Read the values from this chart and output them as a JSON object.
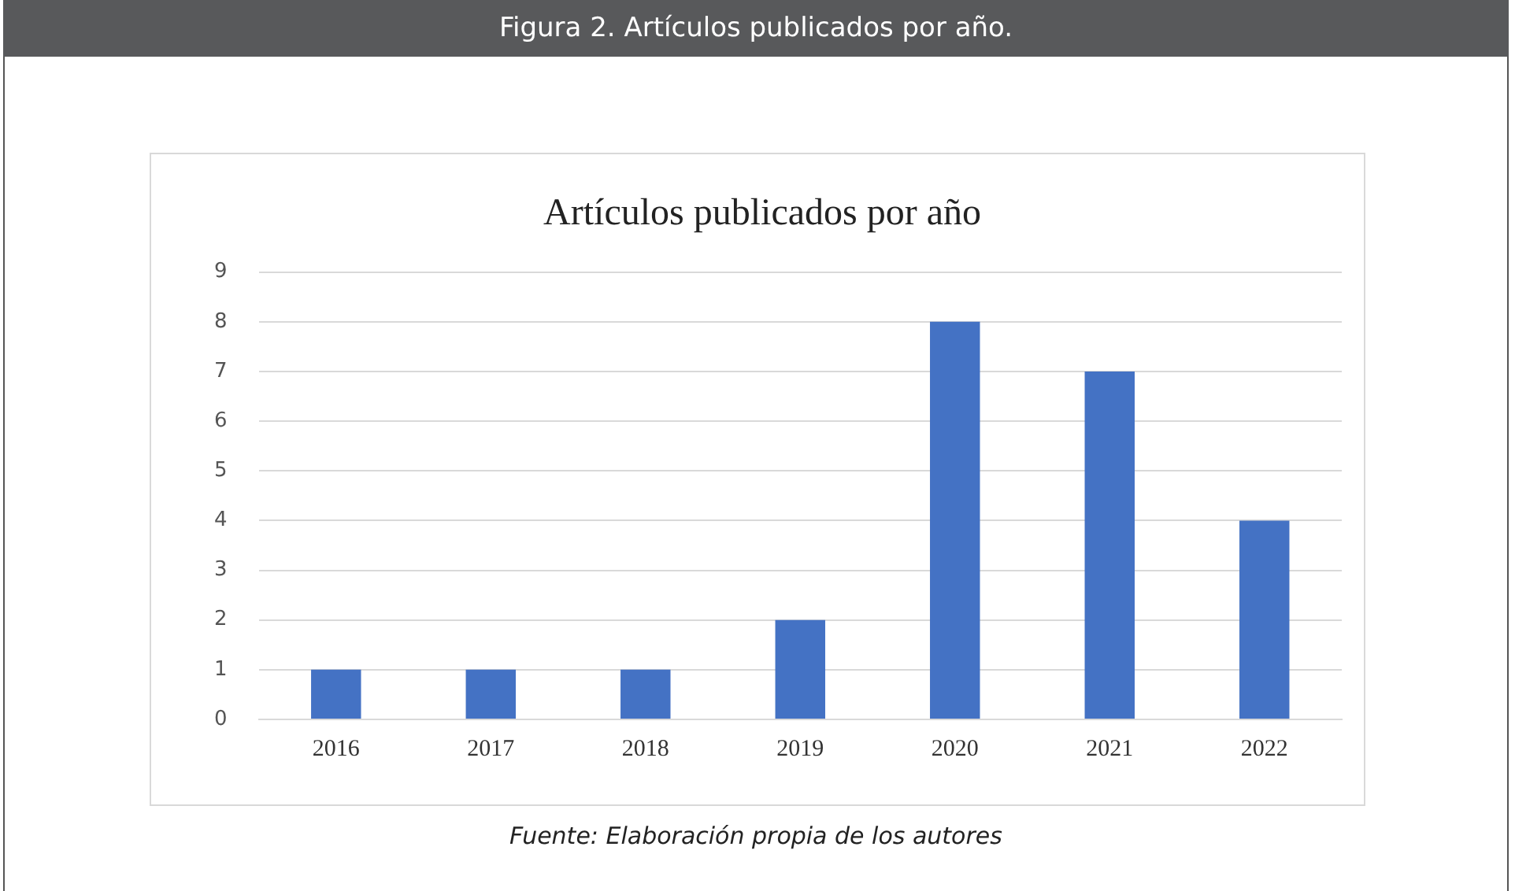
{
  "chart_data": {
    "type": "bar",
    "title": "Artículos publicados por año",
    "categories": [
      "2016",
      "2017",
      "2018",
      "2019",
      "2020",
      "2021",
      "2022"
    ],
    "values": [
      1,
      1,
      1,
      2,
      8,
      7,
      4
    ],
    "color": "#4472c4",
    "ylim": [
      0,
      9
    ],
    "yticks": [
      0,
      1,
      2,
      3,
      4,
      5,
      6,
      7,
      8,
      9
    ],
    "grid": "y",
    "annotations": [
      "Figura 2. Artículos publicados por año.",
      "Fuente: Elaboración propia de los autores"
    ]
  }
}
